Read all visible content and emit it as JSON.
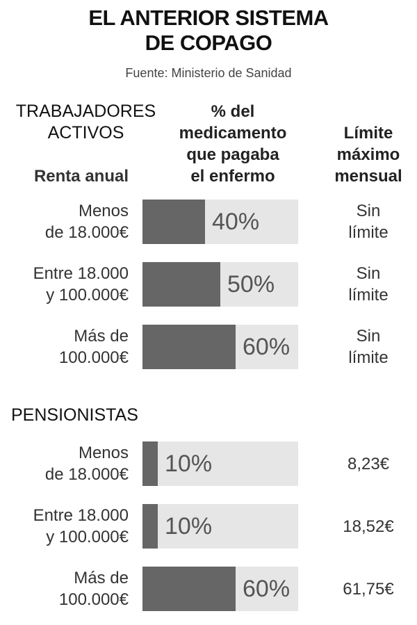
{
  "title_line1": "EL ANTERIOR SISTEMA",
  "title_line2": "DE COPAGO",
  "source": "Fuente:  Ministerio de Sanidad",
  "col_pct_head": [
    "% del",
    "medicamento",
    "que pagaba",
    "el enfermo"
  ],
  "col_limit_head": [
    "Límite",
    "máximo",
    "mensual"
  ],
  "renta_head": "Renta anual",
  "chart_data": [
    {
      "type": "bar",
      "title": "TRABAJADORES ACTIVOS",
      "title_lines": [
        "TRABAJADORES",
        "ACTIVOS"
      ],
      "categories": [
        [
          "Menos",
          "de 18.000€"
        ],
        [
          "Entre 18.000",
          "y 100.000€"
        ],
        [
          "Más de",
          "100.000€"
        ]
      ],
      "values": [
        40,
        50,
        60
      ],
      "value_labels": [
        "40%",
        "50%",
        "60%"
      ],
      "limits": [
        [
          "Sin",
          "límite"
        ],
        [
          "Sin",
          "límite"
        ],
        [
          "Sin",
          "límite"
        ]
      ],
      "xlim": [
        0,
        100
      ]
    },
    {
      "type": "bar",
      "title": "PENSIONISTAS",
      "title_lines": [
        "PENSIONISTAS"
      ],
      "categories": [
        [
          "Menos",
          "de 18.000€"
        ],
        [
          "Entre 18.000",
          "y 100.000€"
        ],
        [
          "Más de",
          "100.000€"
        ]
      ],
      "values": [
        10,
        10,
        60
      ],
      "value_labels": [
        "10%",
        "10%",
        "60%"
      ],
      "limits": [
        [
          "8,23€"
        ],
        [
          "18,52€"
        ],
        [
          "61,75€"
        ]
      ],
      "xlim": [
        0,
        100
      ]
    }
  ],
  "colors": {
    "bar": "#666666",
    "track": "#e6e6e6"
  }
}
